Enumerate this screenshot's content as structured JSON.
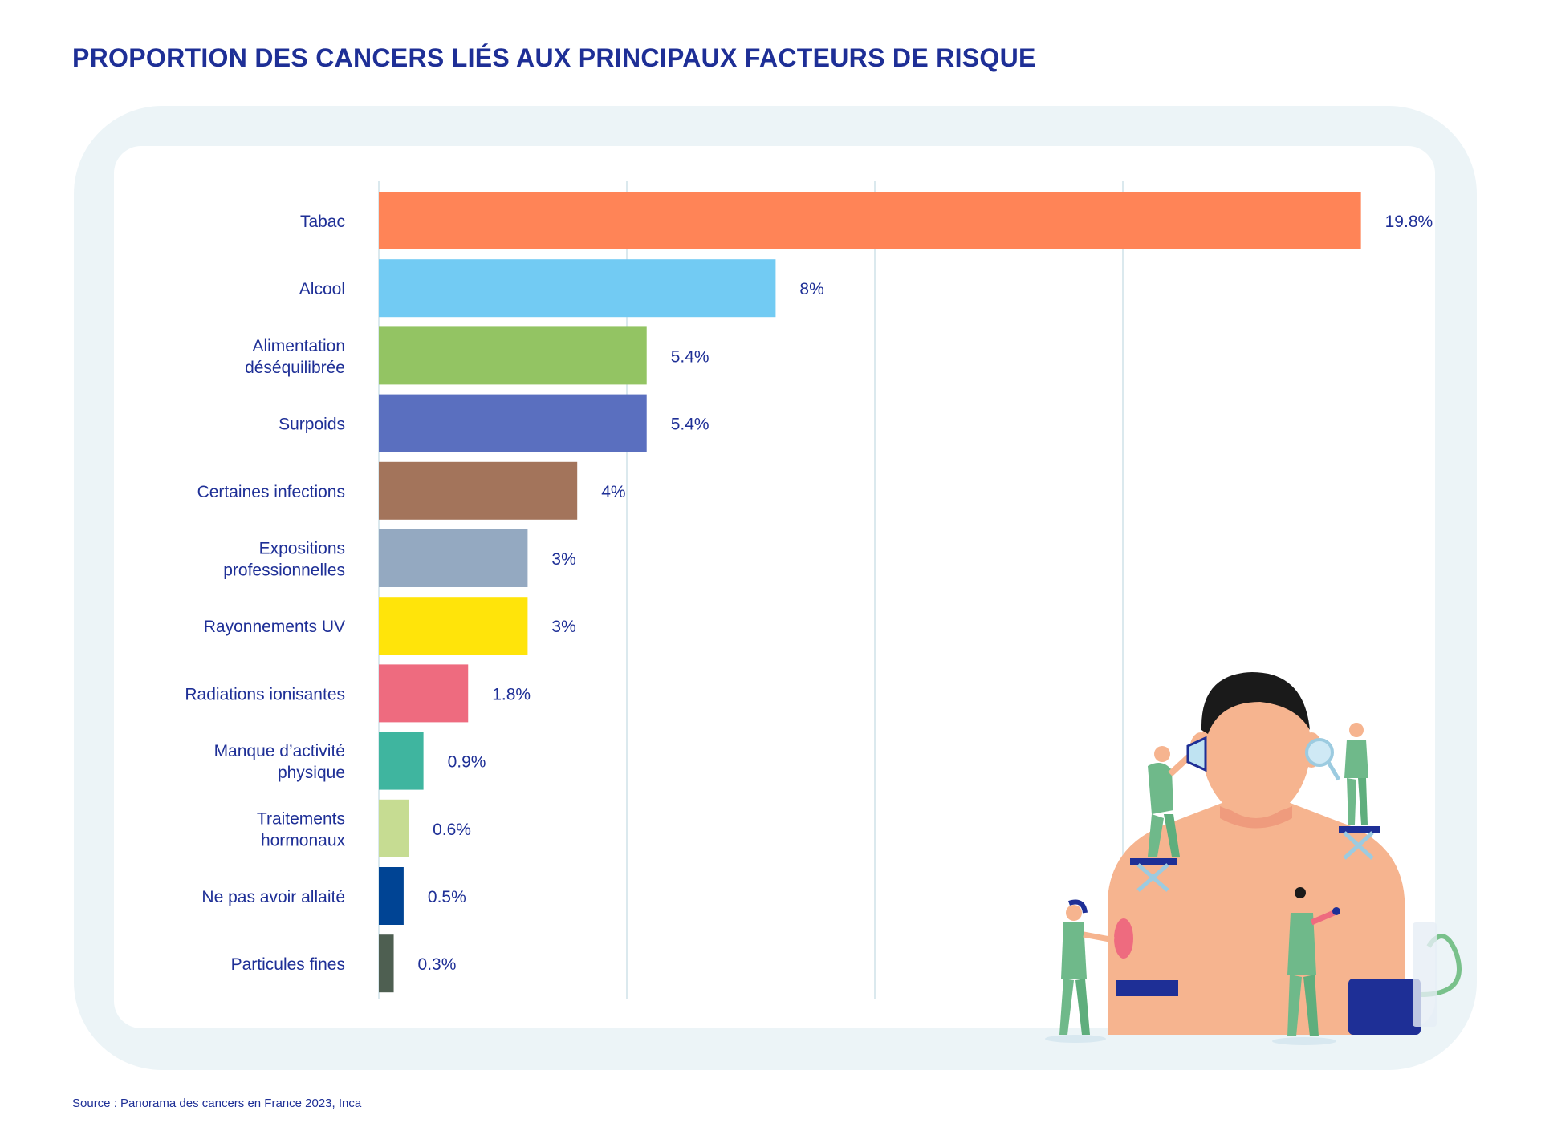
{
  "title": "PROPORTION DES CANCERS LIÉS AUX PRINCIPAUX FACTEURS DE RISQUE",
  "source": "Source : Panorama des cancers en France 2023, Inca",
  "colors": {
    "title": "#1e2f96",
    "grid": "#dbe9ee",
    "outer_panel": "#ecf4f7"
  },
  "chart_data": {
    "type": "bar",
    "orientation": "horizontal",
    "title": "PROPORTION DES CANCERS LIÉS AUX PRINCIPAUX FACTEURS DE RISQUE",
    "xlabel": "",
    "ylabel": "",
    "xlim": [
      0,
      20
    ],
    "grid": true,
    "legend": "none",
    "unit": "%",
    "categories": [
      [
        "Tabac"
      ],
      [
        "Alcool"
      ],
      [
        "Alimentation",
        "déséquilibrée"
      ],
      [
        "Surpoids"
      ],
      [
        "Certaines infections"
      ],
      [
        "Expositions",
        "professionnelles"
      ],
      [
        "Rayonnements UV"
      ],
      [
        "Radiations ionisantes"
      ],
      [
        "Manque d’activité",
        "physique"
      ],
      [
        "Traitements",
        "hormonaux"
      ],
      [
        "Ne pas avoir allaité"
      ],
      [
        "Particules fines"
      ]
    ],
    "values": [
      19.8,
      8,
      5.4,
      5.4,
      4,
      3,
      3,
      1.8,
      0.9,
      0.6,
      0.5,
      0.3
    ],
    "value_labels": [
      "19.8%",
      "8%",
      "5.4%",
      "5.4%",
      "4%",
      "3%",
      "3%",
      "1.8%",
      "0.9%",
      "0.6%",
      "0.5%",
      "0.3%"
    ],
    "bar_colors": [
      "#ff8457",
      "#72cbf3",
      "#93c463",
      "#5a6fbf",
      "#a3745b",
      "#94a9c1",
      "#ffe40a",
      "#ee6b7f",
      "#3fb59f",
      "#c6dc92",
      "#004494",
      "#4e5f51"
    ]
  }
}
